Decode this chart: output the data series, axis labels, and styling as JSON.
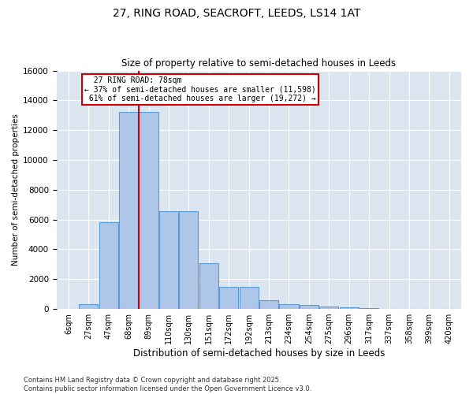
{
  "title_line1": "27, RING ROAD, SEACROFT, LEEDS, LS14 1AT",
  "title_line2": "Size of property relative to semi-detached houses in Leeds",
  "xlabel": "Distribution of semi-detached houses by size in Leeds",
  "ylabel": "Number of semi-detached properties",
  "bar_labels": [
    "6sqm",
    "27sqm",
    "47sqm",
    "68sqm",
    "89sqm",
    "110sqm",
    "130sqm",
    "151sqm",
    "172sqm",
    "192sqm",
    "213sqm",
    "234sqm",
    "254sqm",
    "275sqm",
    "296sqm",
    "317sqm",
    "337sqm",
    "358sqm",
    "399sqm",
    "420sqm"
  ],
  "bar_values": [
    0,
    310,
    5800,
    13200,
    13200,
    6550,
    6550,
    3050,
    1500,
    1500,
    600,
    310,
    270,
    170,
    130,
    50,
    0,
    0,
    0,
    0
  ],
  "property_line_x": 3.5,
  "property_sqm": 78,
  "pct_smaller": 37,
  "count_smaller": 11598,
  "pct_larger": 61,
  "count_larger": 19272,
  "bar_color": "#aec6e8",
  "bar_edge_color": "#5b9bd5",
  "line_color": "#cc0000",
  "annotation_box_color": "#cc0000",
  "background_color": "#dce6f0",
  "grid_color": "#ffffff",
  "ylim": [
    0,
    16000
  ],
  "yticks": [
    0,
    2000,
    4000,
    6000,
    8000,
    10000,
    12000,
    14000,
    16000
  ],
  "footer_line1": "Contains HM Land Registry data © Crown copyright and database right 2025.",
  "footer_line2": "Contains public sector information licensed under the Open Government Licence v3.0."
}
